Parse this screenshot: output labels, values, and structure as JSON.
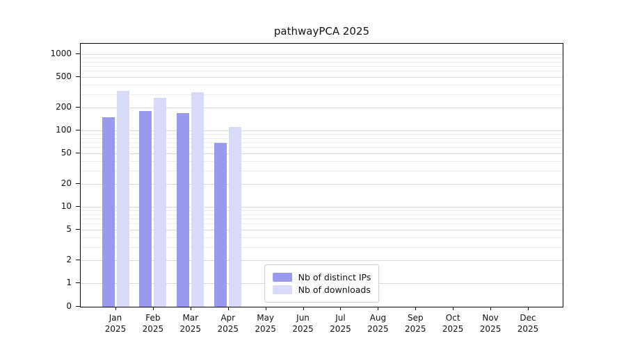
{
  "title": "pathwayPCA 2025",
  "colors": {
    "bar_distinct_ips": "#9999ee",
    "bar_downloads": "#d9d9f8",
    "grid_major": "#d9d9d9",
    "grid_minor": "#ededed",
    "axis": "#000000",
    "legend_border": "#cccccc"
  },
  "axes": {
    "yticks": [
      "0",
      "1",
      "2",
      "5",
      "10",
      "20",
      "50",
      "100",
      "200",
      "500",
      "1000"
    ],
    "ytick_values": [
      0,
      1,
      2,
      5,
      10,
      20,
      50,
      100,
      200,
      500,
      1000
    ],
    "months": [
      "Jan",
      "Feb",
      "Mar",
      "Apr",
      "May",
      "Jun",
      "Jul",
      "Aug",
      "Sep",
      "Oct",
      "Nov",
      "Dec"
    ],
    "year": "2025"
  },
  "chart_data": {
    "type": "bar",
    "title": "pathwayPCA 2025",
    "categories": [
      "Jan 2025",
      "Feb 2025",
      "Mar 2025",
      "Apr 2025",
      "May 2025",
      "Jun 2025",
      "Jul 2025",
      "Aug 2025",
      "Sep 2025",
      "Oct 2025",
      "Nov 2025",
      "Dec 2025"
    ],
    "series": [
      {
        "name": "Nb of distinct IPs",
        "color": "#9999ee",
        "values": [
          150,
          180,
          170,
          68,
          0,
          0,
          0,
          0,
          0,
          0,
          0,
          0
        ]
      },
      {
        "name": "Nb of downloads",
        "color": "#d9d9f8",
        "values": [
          330,
          265,
          315,
          110,
          0,
          0,
          0,
          0,
          0,
          0,
          0,
          0
        ]
      }
    ],
    "yscale": "log",
    "yticks": [
      0,
      1,
      2,
      5,
      10,
      20,
      50,
      100,
      200,
      500,
      1000
    ],
    "ylim": [
      0,
      1350
    ],
    "grid": true,
    "legend_position": "lower center"
  }
}
